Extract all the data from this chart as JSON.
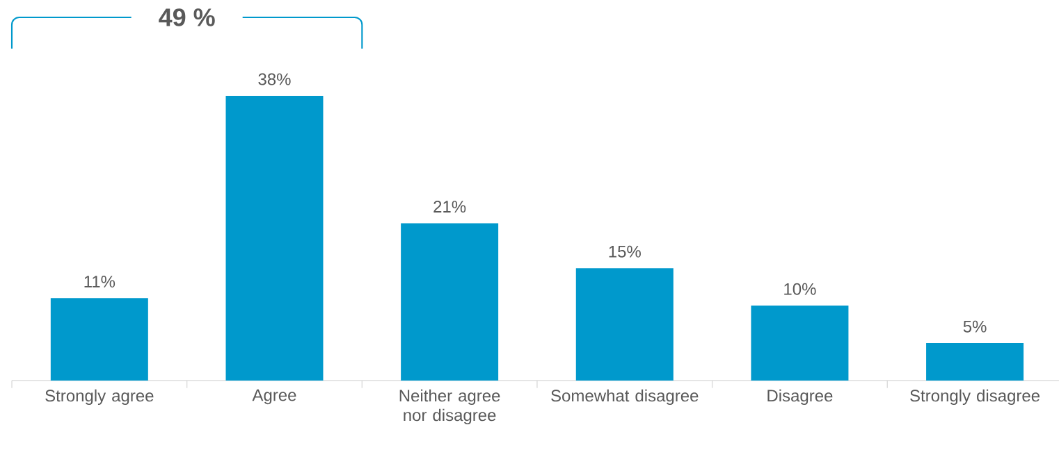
{
  "chart_data": {
    "type": "bar",
    "categories": [
      "Strongly agree",
      "Agree",
      "Neither agree nor disagree",
      "Somewhat disagree",
      "Disagree",
      "Strongly disagree"
    ],
    "values": [
      11,
      38,
      21,
      15,
      10,
      5
    ],
    "value_labels": [
      "11%",
      "38%",
      "21%",
      "15%",
      "10%",
      "5%"
    ],
    "color": "#0099cc",
    "annotations": [
      "49 %"
    ]
  }
}
